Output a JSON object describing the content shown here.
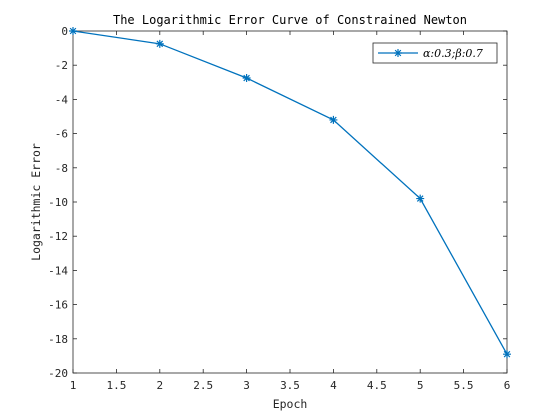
{
  "chart_data": {
    "type": "line",
    "title": "The Logarithmic Error Curve of Constrained Newton",
    "xlabel": "Epoch",
    "ylabel": "Logarithmic Error",
    "xlim": [
      1,
      6
    ],
    "ylim": [
      -20,
      0
    ],
    "x_ticks": [
      1,
      1.5,
      2,
      2.5,
      3,
      3.5,
      4,
      4.5,
      5,
      5.5,
      6
    ],
    "x_tick_labels": [
      "1",
      "1.5",
      "2",
      "2.5",
      "3",
      "3.5",
      "4",
      "4.5",
      "5",
      "5.5",
      "6"
    ],
    "y_ticks": [
      0,
      -2,
      -4,
      -6,
      -8,
      -10,
      -12,
      -14,
      -16,
      -18,
      -20
    ],
    "y_tick_labels": [
      "0",
      "-2",
      "-4",
      "-6",
      "-8",
      "-10",
      "-12",
      "-14",
      "-16",
      "-18",
      "-20"
    ],
    "grid": false,
    "legend_position": "top-right",
    "series": [
      {
        "name": "α:0.3;β:0.7",
        "color": "#0072BD",
        "marker": "asterisk",
        "x": [
          1,
          2,
          3,
          4,
          5,
          6
        ],
        "y": [
          0,
          -0.75,
          -2.75,
          -5.2,
          -9.8,
          -18.9
        ]
      }
    ]
  }
}
